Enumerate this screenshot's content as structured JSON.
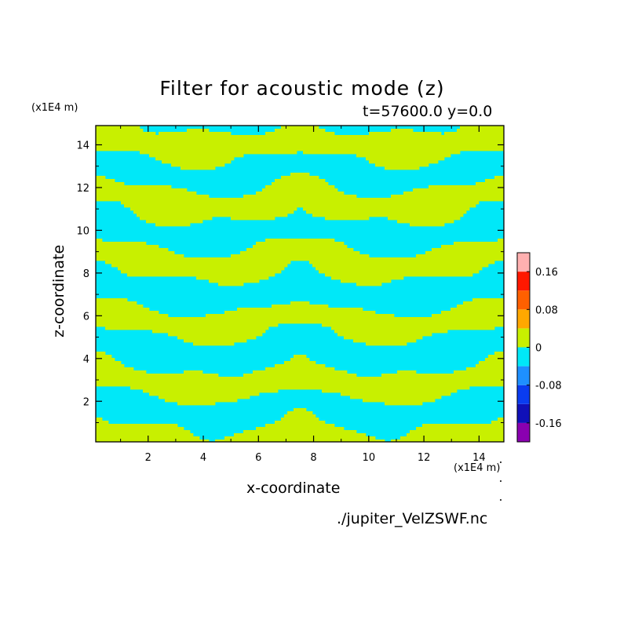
{
  "chart_data": {
    "type": "heatmap",
    "title": "Filter for acoustic mode (z)",
    "subtitle": "t=57600.0 y=0.0",
    "xlabel": "x-coordinate",
    "ylabel": "z-coordinate",
    "x_unit": "(x1E4 m)",
    "y_unit": "(x1E4 m)",
    "xlim": [
      0.1,
      14.9
    ],
    "ylim": [
      0.1,
      14.9
    ],
    "x_ticks": [
      2,
      4,
      6,
      8,
      10,
      12,
      14
    ],
    "y_ticks": [
      2,
      4,
      6,
      8,
      10,
      12,
      14
    ],
    "x_tick_labels": [
      "2",
      "4",
      "6",
      "8",
      "10",
      "12",
      "14"
    ],
    "y_tick_labels": [
      "2",
      "4",
      "6",
      "8",
      "10",
      "12",
      "14"
    ],
    "source": "./jupiter_VelZSWF.nc",
    "colorbar": {
      "levels": [
        -0.2,
        -0.16,
        -0.12,
        -0.08,
        -0.04,
        0,
        0.04,
        0.08,
        0.12,
        0.16,
        0.2
      ],
      "colors": [
        "#8a00b0",
        "#1010b8",
        "#0a3cf0",
        "#1e90ff",
        "#00e8f8",
        "#c8f000",
        "#ffa800",
        "#ff6000",
        "#ff1800",
        "#ffb0b0"
      ],
      "tick_values": [
        -0.16,
        -0.08,
        0,
        0.08,
        0.16
      ],
      "tick_labels": [
        "-0.16",
        "-0.08",
        "0",
        "0.08",
        "0.16"
      ]
    },
    "field_colors": {
      "positive": "#c8f000",
      "negative": "#00e8f8"
    },
    "grid": false
  }
}
